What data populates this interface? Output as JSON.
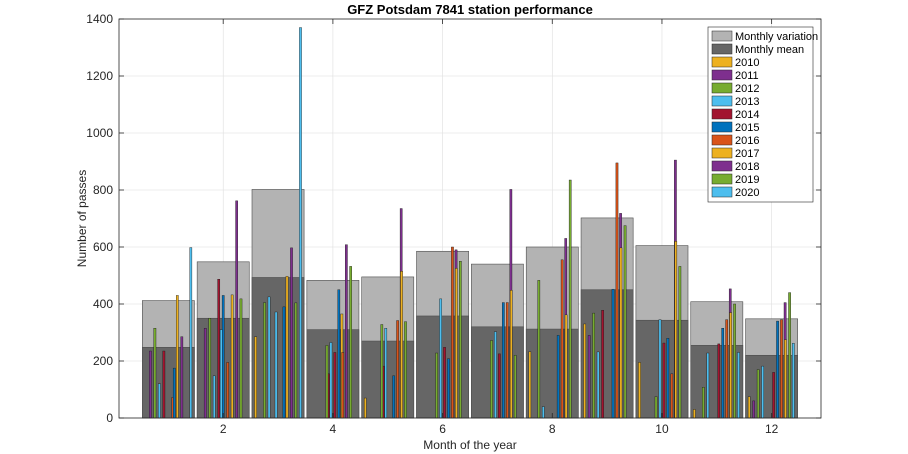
{
  "chart_data": {
    "type": "bar",
    "title": "GFZ Potsdam 7841 station performance",
    "xlabel": "Month of the year",
    "ylabel": "Number of passes",
    "xlim": [
      0.1,
      12.9
    ],
    "ylim": [
      0,
      1400
    ],
    "xticks": [
      2,
      4,
      6,
      8,
      10,
      12
    ],
    "yticks": [
      0,
      200,
      400,
      600,
      800,
      1000,
      1200,
      1400
    ],
    "grid": true,
    "legend_location": "top-right",
    "categories": [
      1,
      2,
      3,
      4,
      5,
      6,
      7,
      8,
      9,
      10,
      11,
      12
    ],
    "monthly_variation": {
      "name": "Monthly variation",
      "color": "#b3b3b3",
      "values": [
        412,
        548,
        802,
        483,
        495,
        585,
        540,
        600,
        702,
        605,
        408,
        348
      ]
    },
    "monthly_mean": {
      "name": "Monthly mean",
      "color": "#666666",
      "values": [
        248,
        350,
        493,
        310,
        270,
        358,
        320,
        312,
        450,
        343,
        255,
        220
      ]
    },
    "series": [
      {
        "name": "2010",
        "color": "#EDB120",
        "values": [
          0,
          0,
          285,
          0,
          70,
          0,
          0,
          233,
          330,
          195,
          30,
          75
        ]
      },
      {
        "name": "2011",
        "color": "#7E2F8E",
        "values": [
          235,
          315,
          0,
          0,
          0,
          0,
          0,
          0,
          290,
          0,
          0,
          60
        ]
      },
      {
        "name": "2012",
        "color": "#77AC30",
        "values": [
          315,
          350,
          405,
          0,
          0,
          0,
          0,
          483,
          368,
          0,
          108,
          170
        ]
      },
      {
        "name": "2013",
        "color": "#4DBEEE",
        "values": [
          120,
          148,
          425,
          0,
          0,
          0,
          0,
          40,
          232,
          0,
          228,
          182
        ]
      },
      {
        "name": "2014",
        "color": "#A2142F",
        "values": [
          235,
          487,
          0,
          155,
          182,
          0,
          0,
          0,
          378,
          0,
          0,
          0
        ]
      },
      {
        "name": "2015",
        "color": "#0072BD",
        "values": [
          0,
          430,
          0,
          0,
          0,
          0,
          0,
          0,
          0,
          0,
          0,
          0
        ]
      },
      {
        "name": "2016",
        "color": "#D95319",
        "values": [
          72,
          195,
          0,
          0,
          0,
          0,
          0,
          0,
          0,
          0,
          0,
          0
        ]
      },
      {
        "name": "2017",
        "color": "#EDB120",
        "values": [
          430,
          432,
          497,
          365,
          0,
          0,
          0,
          0,
          0,
          0,
          0,
          0
        ]
      },
      {
        "name": "2018",
        "color": "#7E2F8E",
        "values": [
          285,
          762,
          597,
          608,
          735,
          590,
          802,
          630,
          718,
          905,
          453,
          405
        ]
      },
      {
        "name": "2019",
        "color": "#77AC30",
        "values": [
          0,
          0,
          0,
          0,
          0,
          0,
          0,
          835,
          675,
          532,
          0,
          440
        ]
      },
      {
        "name": "2020",
        "color": "#4DBEEE",
        "values": [
          598,
          0,
          1370,
          0,
          0,
          0,
          0,
          0,
          0,
          0,
          0,
          0
        ]
      }
    ],
    "extra_bars": [
      {
        "name": "2015",
        "color": "#0072BD",
        "points": [
          [
            1,
            175
          ],
          [
            3,
            390
          ],
          [
            4,
            450
          ],
          [
            5,
            148
          ],
          [
            6,
            208
          ],
          [
            7,
            405
          ],
          [
            8,
            290
          ],
          [
            9,
            452
          ],
          [
            10,
            280
          ],
          [
            11,
            315
          ],
          [
            12,
            340
          ]
        ]
      },
      {
        "name": "2016",
        "color": "#D95319",
        "points": [
          [
            4,
            230
          ],
          [
            5,
            342
          ],
          [
            6,
            600
          ],
          [
            7,
            405
          ],
          [
            8,
            555
          ],
          [
            9,
            895
          ],
          [
            10,
            155
          ],
          [
            11,
            345
          ],
          [
            12,
            345
          ]
        ]
      },
      {
        "name": "2017",
        "color": "#EDB120",
        "points": [
          [
            5,
            515
          ],
          [
            6,
            525
          ],
          [
            7,
            448
          ],
          [
            8,
            362
          ],
          [
            9,
            597
          ],
          [
            10,
            620
          ],
          [
            11,
            370
          ],
          [
            12,
            275
          ]
        ]
      },
      {
        "name": "2014",
        "color": "#A2142F",
        "points": [
          [
            4,
            230
          ],
          [
            6,
            248
          ],
          [
            7,
            225
          ],
          [
            10,
            263
          ],
          [
            11,
            260
          ],
          [
            12,
            160
          ]
        ]
      },
      {
        "name": "2019",
        "color": "#77AC30",
        "points": [
          [
            2,
            418
          ],
          [
            3,
            404
          ],
          [
            4,
            532
          ],
          [
            5,
            338
          ],
          [
            6,
            550
          ],
          [
            7,
            220
          ],
          [
            11,
            400
          ]
        ]
      },
      {
        "name": "2013",
        "color": "#4DBEEE",
        "points": [
          [
            2,
            310
          ],
          [
            3,
            372
          ],
          [
            4,
            265
          ],
          [
            5,
            315
          ],
          [
            6,
            418
          ],
          [
            7,
            303
          ],
          [
            10,
            345
          ]
        ]
      },
      {
        "name": "2012",
        "color": "#77AC30",
        "points": [
          [
            4,
            255
          ],
          [
            5,
            328
          ],
          [
            6,
            228
          ],
          [
            7,
            272
          ],
          [
            10,
            75
          ]
        ]
      },
      {
        "name": "2020",
        "color": "#4DBEEE",
        "points": [
          [
            11,
            230
          ],
          [
            12,
            262
          ]
        ]
      }
    ]
  }
}
